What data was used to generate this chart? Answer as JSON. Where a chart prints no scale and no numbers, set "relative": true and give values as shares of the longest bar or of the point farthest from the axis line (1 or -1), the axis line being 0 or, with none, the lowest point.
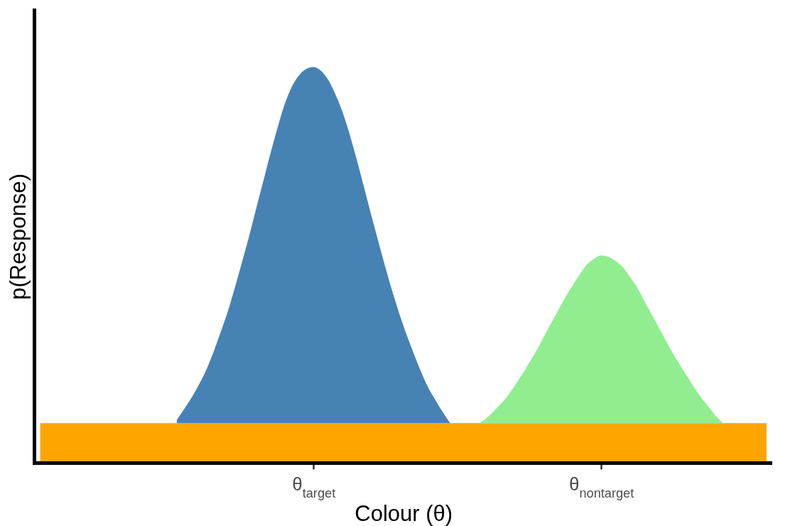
{
  "chart_data": {
    "type": "area",
    "relative": true,
    "xlabel": "Colour (θ)",
    "ylabel": "p(Response)",
    "categories": [
      null,
      null,
      null,
      null,
      null,
      null,
      null,
      null,
      null,
      null,
      null,
      null,
      null,
      null,
      null,
      null,
      null,
      null,
      null,
      null,
      null,
      null,
      null,
      null,
      null,
      null,
      null,
      null,
      null,
      null,
      null,
      null,
      null,
      null,
      null,
      null,
      null,
      null,
      "θ$_{target}$",
      null,
      null,
      null,
      null,
      null,
      null,
      null,
      null,
      null,
      null,
      null,
      null,
      null,
      null,
      null,
      null,
      null,
      null,
      null,
      null,
      null,
      null,
      null,
      null,
      null,
      null,
      null,
      null,
      null,
      null,
      null,
      null,
      null,
      null,
      null,
      null,
      null,
      null,
      null,
      "θ$_{nontarget}$",
      null,
      null,
      null,
      null,
      null,
      null,
      null,
      null,
      null,
      null,
      null,
      null,
      null,
      null,
      null,
      null,
      null,
      null,
      null,
      null,
      null,
      null,
      null
    ],
    "bands": [
      {
        "axis": "y",
        "from": 0,
        "to": 0.1,
        "color": "#ffa500"
      }
    ],
    "series": [
      {
        "color": "#4682b4",
        "values": [
          null,
          null,
          null,
          null,
          null,
          null,
          null,
          null,
          null,
          null,
          null,
          null,
          null,
          null,
          null,
          null,
          null,
          null,
          null,
          0.108,
          0.135,
          0.163,
          0.195,
          0.231,
          0.275,
          0.325,
          0.377,
          0.438,
          0.503,
          0.569,
          0.64,
          0.71,
          0.78,
          0.846,
          0.906,
          0.95,
          0.979,
          0.995,
          1,
          0.991,
          0.969,
          0.933,
          0.888,
          0.832,
          0.767,
          0.698,
          0.628,
          0.56,
          0.494,
          0.431,
          0.373,
          0.321,
          0.273,
          0.228,
          0.188,
          0.157,
          0.127,
          0.1,
          null,
          null,
          null,
          null,
          null,
          null,
          null,
          null,
          null,
          null,
          null,
          null,
          null,
          null,
          null,
          null,
          null,
          null,
          null,
          null,
          null,
          null,
          null,
          null,
          null,
          null,
          null,
          null,
          null,
          null,
          null,
          null,
          null,
          null,
          null,
          null,
          null,
          null,
          null,
          null,
          null,
          null,
          null,
          null
        ]
      },
      {
        "color": "#90ee90",
        "values": [
          null,
          null,
          null,
          null,
          null,
          null,
          null,
          null,
          null,
          null,
          null,
          null,
          null,
          null,
          null,
          null,
          null,
          null,
          null,
          null,
          null,
          null,
          null,
          null,
          null,
          null,
          null,
          null,
          null,
          null,
          null,
          null,
          null,
          null,
          null,
          null,
          null,
          null,
          null,
          null,
          null,
          null,
          null,
          null,
          null,
          null,
          null,
          null,
          null,
          null,
          null,
          null,
          null,
          null,
          null,
          null,
          null,
          null,
          null,
          null,
          null,
          0.1,
          0.112,
          0.129,
          0.148,
          0.169,
          0.195,
          0.223,
          0.253,
          0.283,
          0.317,
          0.351,
          0.384,
          0.417,
          0.447,
          0.475,
          0.5,
          0.515,
          0.524,
          0.52,
          0.51,
          0.494,
          0.47,
          0.443,
          0.409,
          0.376,
          0.342,
          0.309,
          0.276,
          0.246,
          0.217,
          0.189,
          0.162,
          0.14,
          0.117,
          0.1,
          null,
          null,
          null,
          null,
          null,
          null
        ]
      }
    ]
  }
}
